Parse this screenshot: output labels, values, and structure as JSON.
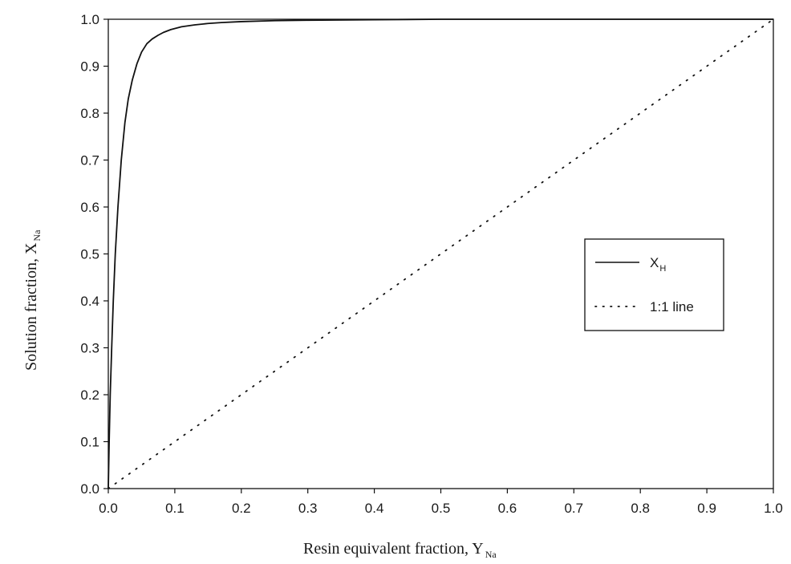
{
  "chart_data": {
    "type": "line",
    "title": "",
    "xlabel": "Resin equivalent fraction, Y",
    "xlabel_sub": "Na",
    "ylabel": "Solution fraction, X",
    "ylabel_sub": "Na",
    "xlim": [
      0.0,
      1.0
    ],
    "ylim": [
      0.0,
      1.0
    ],
    "x_ticks": [
      "0.0",
      "0.1",
      "0.2",
      "0.3",
      "0.4",
      "0.5",
      "0.6",
      "0.7",
      "0.8",
      "0.9",
      "1.0"
    ],
    "y_ticks": [
      "0.0",
      "0.1",
      "0.2",
      "0.3",
      "0.4",
      "0.5",
      "0.6",
      "0.7",
      "0.8",
      "0.9",
      "1.0"
    ],
    "grid": false,
    "legend_position": "right-middle",
    "series": [
      {
        "name": "X",
        "name_sub": "H",
        "style": "solid",
        "color": "#111111",
        "x": [
          0.0,
          0.0013,
          0.0029,
          0.0051,
          0.0075,
          0.0105,
          0.0145,
          0.0195,
          0.025,
          0.03,
          0.036,
          0.043,
          0.05,
          0.058,
          0.066,
          0.075,
          0.083,
          0.094,
          0.11,
          0.13,
          0.15,
          0.17,
          0.2,
          0.25,
          0.3,
          0.4,
          0.5,
          0.6,
          0.7,
          0.8,
          0.9,
          1.0
        ],
        "y": [
          0.0,
          0.1,
          0.2,
          0.3,
          0.4,
          0.5,
          0.6,
          0.7,
          0.78,
          0.83,
          0.87,
          0.905,
          0.93,
          0.948,
          0.958,
          0.966,
          0.972,
          0.978,
          0.984,
          0.988,
          0.991,
          0.993,
          0.995,
          0.997,
          0.998,
          0.999,
          1.0,
          1.0,
          1.0,
          1.0,
          1.0,
          1.0
        ]
      },
      {
        "name": "1:1 line",
        "style": "dotted",
        "color": "#111111",
        "x": [
          0.0,
          1.0
        ],
        "y": [
          0.0,
          1.0
        ]
      }
    ]
  }
}
